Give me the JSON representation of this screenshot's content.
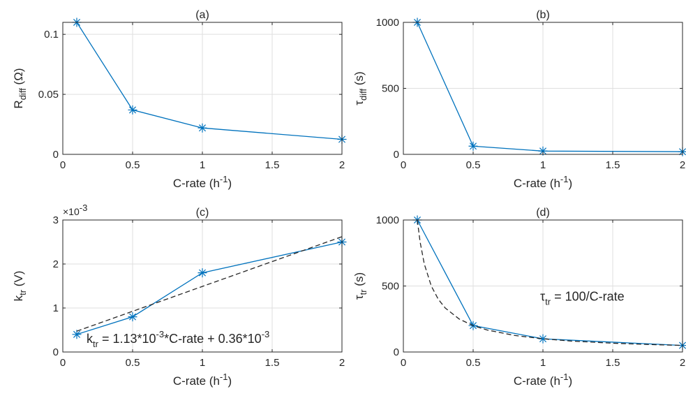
{
  "chart_data": [
    {
      "id": "a",
      "type": "line",
      "title": "(a)",
      "xlabel": {
        "base": "C-rate (h",
        "sup": "-1",
        "tail": ")"
      },
      "ylabel": {
        "base": "R",
        "sub": "diff",
        "tail": " (Ω)"
      },
      "xlim": [
        0,
        2
      ],
      "ylim": [
        0,
        0.11
      ],
      "xticks": [
        0,
        0.5,
        1,
        1.5,
        2
      ],
      "xtick_labels": [
        "0",
        "0.5",
        "1",
        "1.5",
        "2"
      ],
      "yticks": [
        0,
        0.05,
        0.1
      ],
      "ytick_labels": [
        "0",
        "0.05",
        "0.1"
      ],
      "grid": true,
      "series": [
        {
          "x": [
            0.1,
            0.5,
            1,
            2
          ],
          "y": [
            0.11,
            0.037,
            0.022,
            0.0125
          ],
          "color": "#0072BD",
          "marker": "asterisk",
          "dash": false
        }
      ]
    },
    {
      "id": "b",
      "type": "line",
      "title": "(b)",
      "xlabel": {
        "base": "C-rate (h",
        "sup": "-1",
        "tail": ")"
      },
      "ylabel": {
        "base": "τ",
        "sub": "diff",
        "tail": " (s)"
      },
      "xlim": [
        0,
        2
      ],
      "ylim": [
        0,
        1000
      ],
      "xticks": [
        0,
        0.5,
        1,
        1.5,
        2
      ],
      "xtick_labels": [
        "0",
        "0.5",
        "1",
        "1.5",
        "2"
      ],
      "yticks": [
        0,
        500,
        1000
      ],
      "ytick_labels": [
        "0",
        "500",
        "1000"
      ],
      "grid": true,
      "series": [
        {
          "x": [
            0.1,
            0.5,
            1,
            2
          ],
          "y": [
            1000,
            62,
            25,
            20
          ],
          "color": "#0072BD",
          "marker": "asterisk",
          "dash": false
        }
      ]
    },
    {
      "id": "c",
      "type": "line",
      "title": "(c)",
      "exponent": {
        "base": "×10",
        "sup": "-3"
      },
      "xlabel": {
        "base": "C-rate (h",
        "sup": "-1",
        "tail": ")"
      },
      "ylabel": {
        "base": "k",
        "sub": "tr",
        "tail": " (V)"
      },
      "xlim": [
        0,
        2
      ],
      "ylim": [
        0,
        3
      ],
      "xticks": [
        0,
        0.5,
        1,
        1.5,
        2
      ],
      "xtick_labels": [
        "0",
        "0.5",
        "1",
        "1.5",
        "2"
      ],
      "yticks": [
        0,
        1,
        2,
        3
      ],
      "ytick_labels": [
        "0",
        "1",
        "2",
        "3"
      ],
      "grid": true,
      "annotation": {
        "parts": [
          {
            "t": "k",
            "k": "n"
          },
          {
            "t": "tr",
            "k": "sub"
          },
          {
            "t": " = 1.13*10",
            "k": "n"
          },
          {
            "t": "-3",
            "k": "sup"
          },
          {
            "t": "*C-rate + 0.36*10",
            "k": "n"
          },
          {
            "t": "-3",
            "k": "sup"
          }
        ],
        "x": 0.17,
        "y": 0.21
      },
      "series": [
        {
          "x": [
            0.1,
            0.5,
            1,
            2
          ],
          "y": [
            0.4,
            0.8,
            1.8,
            2.5
          ],
          "color": "#0072BD",
          "marker": "asterisk",
          "dash": false
        },
        {
          "x": [
            0.1,
            2
          ],
          "y": [
            0.473,
            2.62
          ],
          "color": "#262626",
          "marker": "none",
          "dash": true
        }
      ]
    },
    {
      "id": "d",
      "type": "line",
      "title": "(d)",
      "xlabel": {
        "base": "C-rate (h",
        "sup": "-1",
        "tail": ")"
      },
      "ylabel": {
        "base": "τ",
        "sub": "tr",
        "tail": " (s)"
      },
      "xlim": [
        0,
        2
      ],
      "ylim": [
        0,
        1000
      ],
      "xticks": [
        0,
        0.5,
        1,
        1.5,
        2
      ],
      "xtick_labels": [
        "0",
        "0.5",
        "1",
        "1.5",
        "2"
      ],
      "yticks": [
        0,
        500,
        1000
      ],
      "ytick_labels": [
        "0",
        "500",
        "1000"
      ],
      "grid": true,
      "annotation": {
        "parts": [
          {
            "t": "τ",
            "k": "n"
          },
          {
            "t": "tr",
            "k": "sub"
          },
          {
            "t": " = 100/C-rate",
            "k": "n"
          }
        ],
        "x": 0.98,
        "y": 390
      },
      "series": [
        {
          "x": [
            0.1,
            0.5,
            1,
            2
          ],
          "y": [
            1000,
            200,
            100,
            50
          ],
          "color": "#0072BD",
          "marker": "asterisk",
          "dash": false
        },
        {
          "x": [
            0.1,
            0.12,
            0.15,
            0.2,
            0.25,
            0.3,
            0.4,
            0.5,
            0.6,
            0.8,
            1,
            1.2,
            1.5,
            1.75,
            2
          ],
          "y": [
            1000,
            833.3,
            666.7,
            500,
            400,
            333.3,
            250,
            200,
            166.7,
            125,
            100,
            83.3,
            66.7,
            57.1,
            50
          ],
          "color": "#262626",
          "marker": "none",
          "dash": true
        }
      ]
    }
  ]
}
